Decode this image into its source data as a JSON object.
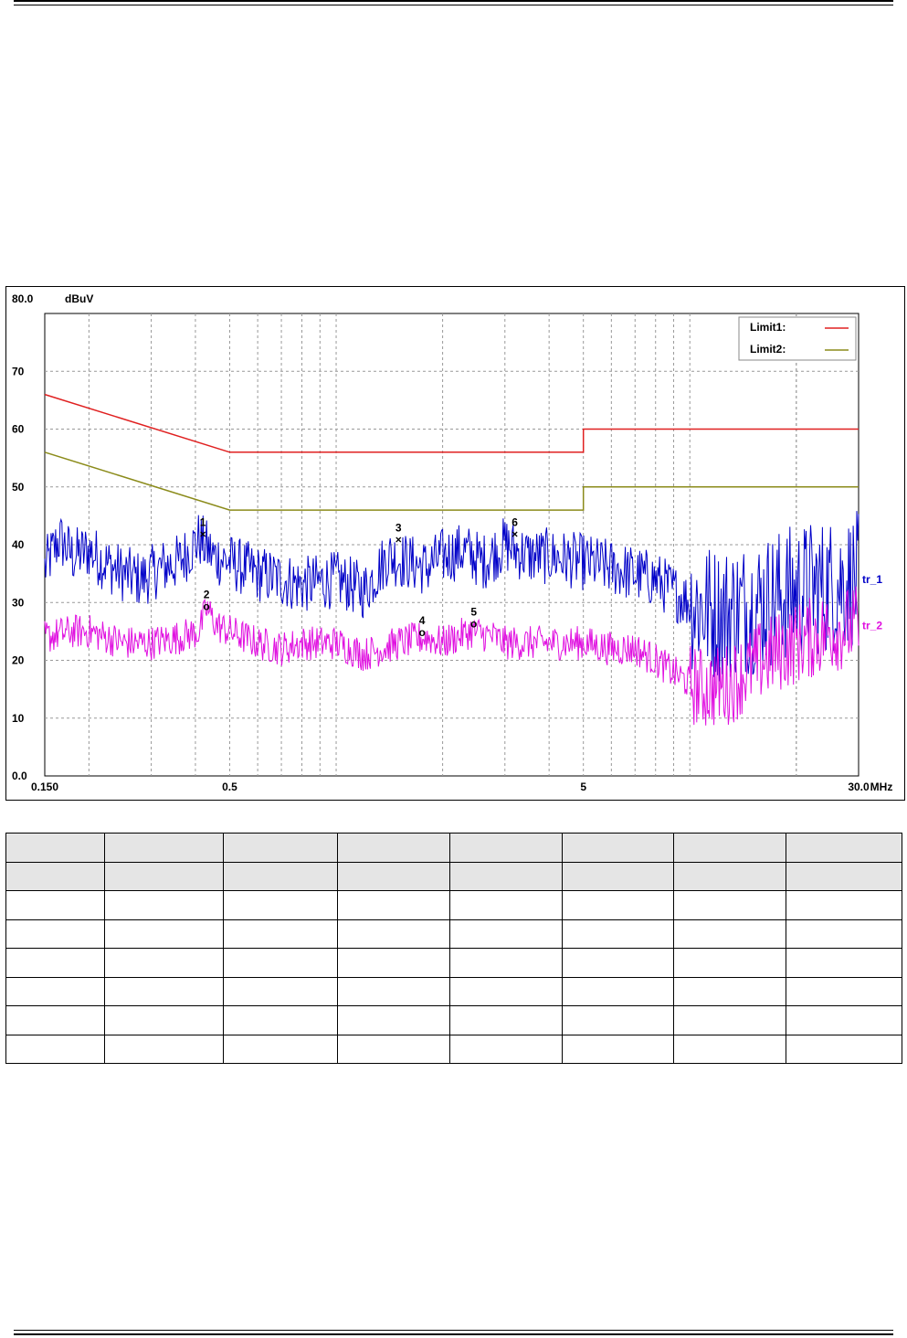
{
  "chart_data": {
    "type": "line",
    "x_scale": "log",
    "xlim": [
      0.15,
      30.0
    ],
    "ylim": [
      0,
      80
    ],
    "x_unit": "MHz",
    "y_unit": "dBuV",
    "y_ticks": [
      "80.0",
      "70",
      "60",
      "50",
      "40",
      "30",
      "20",
      "10",
      "0.0"
    ],
    "x_ticks": [
      {
        "value": 0.15,
        "label": "0.150"
      },
      {
        "value": 0.5,
        "label": "0.5"
      },
      {
        "value": 5,
        "label": "5"
      },
      {
        "value": 30,
        "label": "30.0"
      }
    ],
    "grid": true,
    "legend_position": "top-right",
    "limits": [
      {
        "name": "Limit1:",
        "color": "#e02020",
        "points": [
          [
            0.15,
            66
          ],
          [
            0.5,
            56
          ],
          [
            5,
            56
          ],
          [
            5,
            60
          ],
          [
            30,
            60
          ]
        ]
      },
      {
        "name": "Limit2:",
        "color": "#8b8b1a",
        "points": [
          [
            0.15,
            56
          ],
          [
            0.5,
            46
          ],
          [
            5,
            46
          ],
          [
            5,
            50
          ],
          [
            30,
            50
          ]
        ]
      }
    ],
    "series": [
      {
        "name": "tr_1",
        "color": "#0000c8",
        "noise": 5,
        "points": [
          [
            0.15,
            36
          ],
          [
            0.165,
            41
          ],
          [
            0.18,
            38
          ],
          [
            0.2,
            39
          ],
          [
            0.22,
            37
          ],
          [
            0.25,
            35
          ],
          [
            0.28,
            34
          ],
          [
            0.32,
            36
          ],
          [
            0.36,
            37
          ],
          [
            0.41,
            41
          ],
          [
            0.45,
            38
          ],
          [
            0.5,
            37
          ],
          [
            0.6,
            35
          ],
          [
            0.7,
            34
          ],
          [
            0.8,
            33
          ],
          [
            1.0,
            34
          ],
          [
            1.1,
            33
          ],
          [
            1.2,
            32
          ],
          [
            1.4,
            38
          ],
          [
            1.6,
            37
          ],
          [
            1.8,
            36
          ],
          [
            2.0,
            38
          ],
          [
            2.3,
            39
          ],
          [
            2.6,
            37
          ],
          [
            3.0,
            40
          ],
          [
            3.5,
            38
          ],
          [
            4.0,
            38
          ],
          [
            5.0,
            37
          ],
          [
            6.0,
            36
          ],
          [
            8.0,
            34
          ],
          [
            10.0,
            30
          ],
          [
            12.0,
            28
          ],
          [
            14.0,
            29
          ],
          [
            16.0,
            30
          ],
          [
            20.0,
            32
          ],
          [
            25.0,
            33
          ],
          [
            30.0,
            34
          ]
        ]
      },
      {
        "name": "tr_2",
        "color": "#e010e0",
        "noise": 3,
        "points": [
          [
            0.15,
            24
          ],
          [
            0.18,
            25
          ],
          [
            0.2,
            25
          ],
          [
            0.25,
            23
          ],
          [
            0.3,
            23
          ],
          [
            0.36,
            24
          ],
          [
            0.41,
            25
          ],
          [
            0.43,
            29
          ],
          [
            0.46,
            26
          ],
          [
            0.5,
            25
          ],
          [
            0.6,
            23
          ],
          [
            0.7,
            22
          ],
          [
            0.8,
            23
          ],
          [
            1.0,
            23
          ],
          [
            1.2,
            21
          ],
          [
            1.5,
            23
          ],
          [
            1.8,
            24
          ],
          [
            2.0,
            23
          ],
          [
            2.4,
            25
          ],
          [
            2.8,
            24
          ],
          [
            3.0,
            23
          ],
          [
            4.0,
            23
          ],
          [
            5.0,
            23
          ],
          [
            6.0,
            22
          ],
          [
            7.0,
            22
          ],
          [
            8.0,
            20
          ],
          [
            10.0,
            16
          ],
          [
            11.0,
            15
          ],
          [
            13.0,
            16
          ],
          [
            16.0,
            20
          ],
          [
            20.0,
            23
          ],
          [
            25.0,
            25
          ],
          [
            30.0,
            26
          ]
        ]
      }
    ],
    "markers": [
      {
        "label": "1",
        "symbol": "×",
        "x": 0.42,
        "y": 42,
        "series": "tr_1"
      },
      {
        "label": "2",
        "symbol": "o",
        "x": 0.43,
        "y": 29.5,
        "series": "tr_2"
      },
      {
        "label": "3",
        "symbol": "×",
        "x": 1.5,
        "y": 41,
        "series": "tr_1"
      },
      {
        "label": "4",
        "symbol": "o",
        "x": 1.75,
        "y": 25,
        "series": "tr_2"
      },
      {
        "label": "5",
        "symbol": "o",
        "x": 2.45,
        "y": 26.5,
        "series": "tr_2"
      },
      {
        "label": "6",
        "symbol": "×",
        "x": 3.2,
        "y": 42,
        "series": "tr_1"
      }
    ]
  },
  "table": {
    "shaded_rows": 2,
    "rows": 8,
    "columns": 8
  }
}
